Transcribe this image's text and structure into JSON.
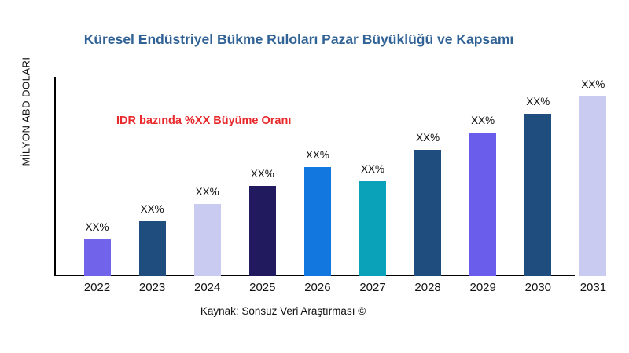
{
  "chart_data": {
    "type": "bar",
    "title": "Küresel Endüstriyel Bükme Ruloları Pazar Büyüklüğü ve Kapsamı",
    "title_color": "#306296",
    "ylabel": "MİLYON ABD DOLARI",
    "annotation": {
      "text": "IDR bazında %XX Büyüme Oranı",
      "color": "#E92A2D"
    },
    "source_caption": "Kaynak: Sonsuz Veri Araştırması ©",
    "categories": [
      "2022",
      "2023",
      "2024",
      "2025",
      "2026",
      "2027",
      "2028",
      "2029",
      "2030",
      "2031"
    ],
    "value_labels": [
      "XX%",
      "XX%",
      "XX%",
      "XX%",
      "XX%",
      "XX%",
      "XX%",
      "XX%",
      "XX%",
      "XX%"
    ],
    "relative_heights_pct_of_max": [
      20.5,
      30.6,
      40.2,
      50.2,
      60.7,
      52.8,
      70.3,
      79.9,
      90.4,
      100
    ],
    "bar_colors": [
      "#7164EA",
      "#1F4E7E",
      "#C9CCF0",
      "#211A5E",
      "#1278E0",
      "#0AA2B8",
      "#1F4E7E",
      "#6A5DEB",
      "#1F4E7E",
      "#C9CCF0"
    ],
    "axis_color": "#000000",
    "xlabel": "",
    "grid": false,
    "legend": false
  }
}
